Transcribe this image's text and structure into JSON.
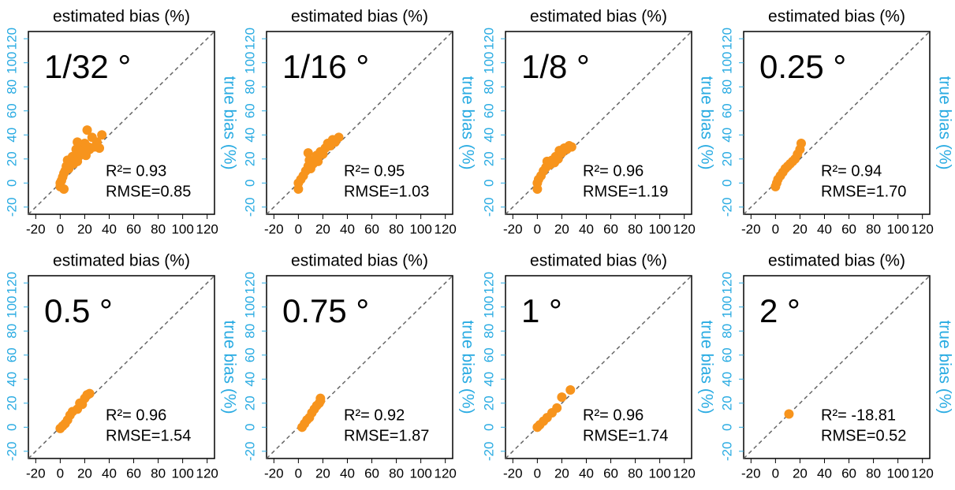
{
  "chart_data": [
    {
      "type": "scatter",
      "title": "estimated bias (%)",
      "y_label": "true bias (%)",
      "label": "1/32 °",
      "r2": "R²= 0.93",
      "rmse": "RMSE=0.85",
      "x": [
        0,
        0,
        1,
        2,
        3,
        4,
        5,
        6,
        7,
        8,
        9,
        10,
        11,
        12,
        13,
        14,
        15,
        16,
        17,
        18,
        20,
        21,
        22,
        23,
        24,
        26,
        28,
        30,
        32,
        34,
        14,
        3
      ],
      "values": [
        -3,
        0,
        2,
        5,
        8,
        10,
        14,
        19,
        12,
        15,
        18,
        22,
        16,
        20,
        28,
        18,
        22,
        25,
        30,
        26,
        33,
        23,
        44,
        30,
        28,
        38,
        30,
        34,
        29,
        40,
        34,
        -5
      ],
      "color": "#f7941d",
      "xlim": [
        -26,
        126
      ],
      "ylim": [
        -26,
        126
      ],
      "xticks": [
        -20,
        0,
        20,
        40,
        60,
        80,
        100,
        120
      ],
      "yticks": [
        -20,
        0,
        20,
        40,
        60,
        80,
        100,
        120
      ]
    },
    {
      "type": "scatter",
      "title": "estimated bias (%)",
      "y_label": "true bias (%)",
      "label": "1/16 °",
      "r2": "R²= 0.95",
      "rmse": "RMSE=1.03",
      "x": [
        0,
        0,
        2,
        4,
        6,
        8,
        9,
        10,
        12,
        14,
        15,
        16,
        18,
        20,
        22,
        24,
        26,
        28,
        30,
        33,
        8
      ],
      "values": [
        -5,
        0,
        3,
        6,
        10,
        14,
        19,
        12,
        16,
        20,
        23,
        18,
        26,
        24,
        29,
        33,
        31,
        36,
        34,
        38,
        25
      ],
      "color": "#f7941d",
      "xlim": [
        -26,
        126
      ],
      "ylim": [
        -26,
        126
      ],
      "xticks": [
        -20,
        0,
        20,
        40,
        60,
        80,
        100,
        120
      ],
      "yticks": [
        -20,
        0,
        20,
        40,
        60,
        80,
        100,
        120
      ]
    },
    {
      "type": "scatter",
      "title": "estimated bias (%)",
      "y_label": "true bias (%)",
      "label": "1/8 °",
      "r2": "R²= 0.96",
      "rmse": "RMSE=1.19",
      "x": [
        0,
        0,
        1,
        3,
        5,
        7,
        8,
        10,
        12,
        14,
        15,
        17,
        18,
        20,
        22,
        24,
        26,
        28
      ],
      "values": [
        -5,
        0,
        3,
        6,
        10,
        13,
        18,
        15,
        19,
        17,
        22,
        20,
        27,
        25,
        29,
        28,
        31,
        30
      ],
      "color": "#f7941d",
      "xlim": [
        -26,
        126
      ],
      "ylim": [
        -26,
        126
      ],
      "xticks": [
        -20,
        0,
        20,
        40,
        60,
        80,
        100,
        120
      ],
      "yticks": [
        -20,
        0,
        20,
        40,
        60,
        80,
        100,
        120
      ]
    },
    {
      "type": "scatter",
      "title": "estimated bias (%)",
      "y_label": "true bias (%)",
      "label": "0.25 °",
      "r2": "R²= 0.94",
      "rmse": "RMSE=1.70",
      "x": [
        0,
        1,
        2,
        4,
        6,
        8,
        10,
        12,
        14,
        16,
        18,
        20,
        21
      ],
      "values": [
        -3,
        0,
        3,
        6,
        9,
        12,
        14,
        16,
        18,
        20,
        24,
        28,
        33
      ],
      "color": "#f7941d",
      "xlim": [
        -26,
        126
      ],
      "ylim": [
        -26,
        126
      ],
      "xticks": [
        -20,
        0,
        20,
        40,
        60,
        80,
        100,
        120
      ],
      "yticks": [
        -20,
        0,
        20,
        40,
        60,
        80,
        100,
        120
      ]
    },
    {
      "type": "scatter",
      "title": "estimated bias (%)",
      "y_label": "true bias (%)",
      "label": "0.5 °",
      "r2": "R²= 0.96",
      "rmse": "RMSE=1.54",
      "x": [
        0,
        2,
        4,
        6,
        8,
        10,
        14,
        16,
        18,
        20,
        22,
        24
      ],
      "values": [
        -1,
        1,
        3,
        6,
        10,
        13,
        15,
        20,
        19,
        24,
        27,
        28
      ],
      "color": "#f7941d",
      "xlim": [
        -26,
        126
      ],
      "ylim": [
        -26,
        126
      ],
      "xticks": [
        -20,
        0,
        20,
        40,
        60,
        80,
        100,
        120
      ],
      "yticks": [
        -20,
        0,
        20,
        40,
        60,
        80,
        100,
        120
      ]
    },
    {
      "type": "scatter",
      "title": "estimated bias (%)",
      "y_label": "true bias (%)",
      "label": "0.75 °",
      "r2": "R²= 0.92",
      "rmse": "RMSE=1.87",
      "x": [
        3,
        5,
        7,
        9,
        11,
        13,
        15,
        17,
        18,
        18
      ],
      "values": [
        0,
        3,
        6,
        8,
        12,
        15,
        18,
        20,
        24,
        22
      ],
      "color": "#f7941d",
      "xlim": [
        -26,
        126
      ],
      "ylim": [
        -26,
        126
      ],
      "xticks": [
        -20,
        0,
        20,
        40,
        60,
        80,
        100,
        120
      ],
      "yticks": [
        -20,
        0,
        20,
        40,
        60,
        80,
        100,
        120
      ]
    },
    {
      "type": "scatter",
      "title": "estimated bias (%)",
      "y_label": "true bias (%)",
      "label": "1 °",
      "r2": "R²= 0.96",
      "rmse": "RMSE=1.74",
      "x": [
        0,
        2,
        5,
        8,
        12,
        16,
        20,
        27
      ],
      "values": [
        0,
        2,
        5,
        8,
        12,
        16,
        25,
        31
      ],
      "color": "#f7941d",
      "xlim": [
        -26,
        126
      ],
      "ylim": [
        -26,
        126
      ],
      "xticks": [
        -20,
        0,
        20,
        40,
        60,
        80,
        100,
        120
      ],
      "yticks": [
        -20,
        0,
        20,
        40,
        60,
        80,
        100,
        120
      ]
    },
    {
      "type": "scatter",
      "title": "estimated bias (%)",
      "y_label": "true bias (%)",
      "label": "2 °",
      "r2": "R²= -18.81",
      "rmse": "RMSE=0.52",
      "x": [
        11
      ],
      "values": [
        11
      ],
      "color": "#f7941d",
      "xlim": [
        -26,
        126
      ],
      "ylim": [
        -26,
        126
      ],
      "xticks": [
        -20,
        0,
        20,
        40,
        60,
        80,
        100,
        120
      ],
      "yticks": [
        -20,
        0,
        20,
        40,
        60,
        80,
        100,
        120
      ]
    }
  ]
}
